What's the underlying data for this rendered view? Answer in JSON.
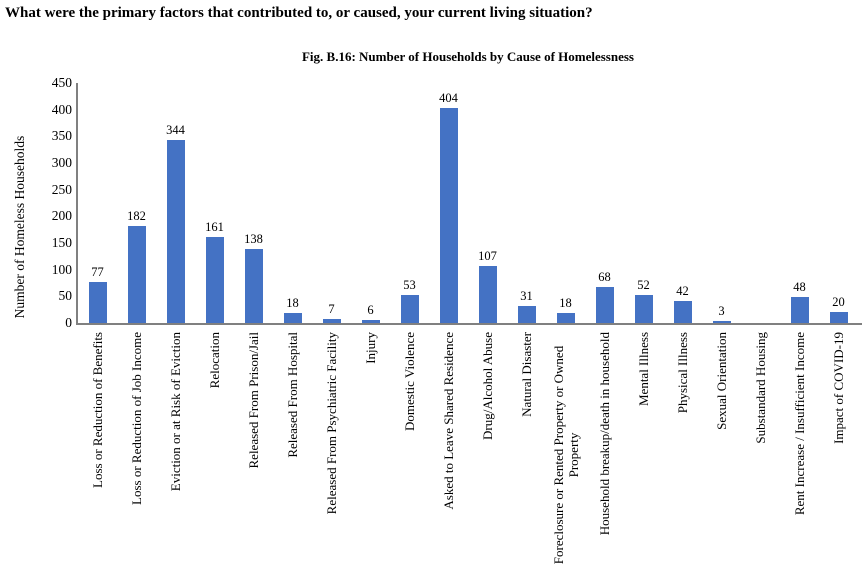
{
  "page": {
    "question_title": "What were the primary factors that contributed to, or caused, your current living situation?"
  },
  "chart_data": {
    "type": "bar",
    "title": "Fig. B.16: Number of Households by Cause of Homelessness",
    "xlabel": "",
    "ylabel": "Number of Homeless Households",
    "ylim": [
      0,
      450
    ],
    "ytick_interval": 50,
    "yticks": [
      0,
      50,
      100,
      150,
      200,
      250,
      300,
      350,
      400,
      450
    ],
    "grid": false,
    "legend": false,
    "bar_color": "#4472C4",
    "axis_color": "#808080",
    "categories": [
      "Loss or Reduction of Benefits",
      "Loss or Reduction of Job Income",
      "Eviction or at Risk of Eviction",
      "Relocation",
      "Released From Prison/Jail",
      "Released From Hospital",
      "Released From Psychiatric Facility",
      "Injury",
      "Domestic Violence",
      "Asked to Leave Shared Residence",
      "Drug/Alcohol Abuse",
      "Natural Disaster",
      "Foreclosure or Rented Property or Owned\nProperty",
      "Household breakup/death in household",
      "Mental Illness",
      "Physical Illness",
      "Sexual Orientation",
      "Substandard Housing",
      "Rent Increase / Insufficient Income",
      "Impact of COVID-19"
    ],
    "values": [
      77,
      182,
      344,
      161,
      138,
      18,
      7,
      6,
      53,
      404,
      107,
      31,
      18,
      68,
      52,
      42,
      3,
      0,
      48,
      20
    ],
    "data_labels": [
      "77",
      "182",
      "344",
      "161",
      "138",
      "18",
      "7",
      "6",
      "53",
      "404",
      "107",
      "31",
      "18",
      "68",
      "52",
      "42",
      "3",
      "",
      "48",
      "20"
    ]
  }
}
